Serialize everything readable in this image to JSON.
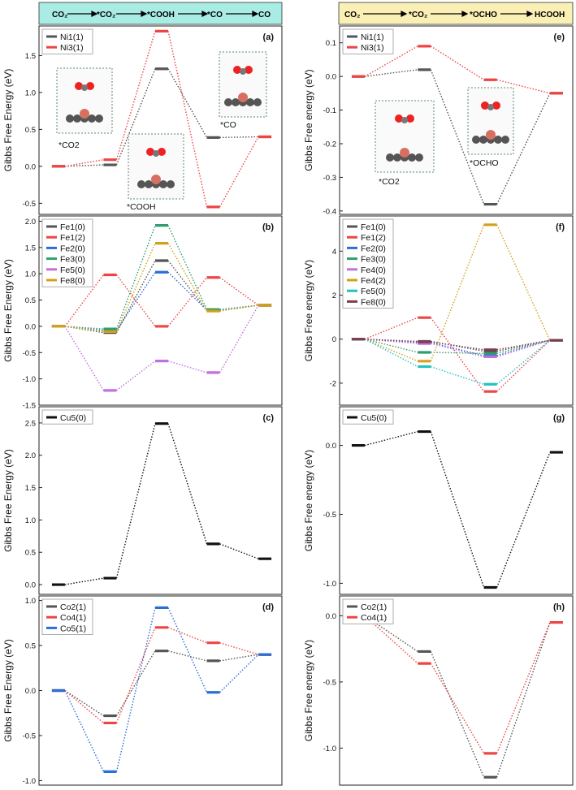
{
  "figure": {
    "header_left": {
      "steps": [
        "CO₂",
        "*CO₂",
        "*COOH",
        "*CO",
        "CO"
      ],
      "bg": "#a8ece4"
    },
    "header_right": {
      "steps": [
        "CO₂",
        "*CO₂",
        "*OCHO",
        "HCOOH"
      ],
      "bg": "#faefb4"
    }
  },
  "colors": {
    "Ni1(1)": "#555555",
    "Ni3(1)": "#ee4444",
    "Fe1(0)": "#555555",
    "Fe1(2)": "#ee4444",
    "Fe2(0)": "#2a6fd6",
    "Fe3(0)": "#2e9e6e",
    "Fe4(0)": "#c070e0",
    "Fe4(2)": "#d4a017",
    "Fe5(0)": "#c070e0",
    "Fe8(0)": "#d4a017",
    "Fe5(0)r": "#22c2c0",
    "Fe8(0)r": "#7a3e50",
    "Cu5(0)": "#111111",
    "Co2(1)": "#555555",
    "Co4(1)": "#ee4444",
    "Co5(1)": "#2a6fd6"
  },
  "chart_data": [
    {
      "id": "a",
      "type": "line",
      "panel_label": "(a)",
      "ylabel": "Gibbs Free Energy (eV)",
      "ylim": [
        -0.65,
        1.9
      ],
      "yticks": [
        -0.5,
        0.0,
        0.5,
        1.0,
        1.5
      ],
      "tick_labels": [
        "-0.5",
        "0.0",
        "0.5",
        "1.0",
        "1.5"
      ],
      "categories": [
        "CO2",
        "*CO2",
        "*COOH",
        "*CO",
        "CO"
      ],
      "series": [
        {
          "name": "Ni1(1)",
          "color": "#555555",
          "values": [
            0.0,
            0.02,
            1.32,
            0.39,
            0.4
          ]
        },
        {
          "name": "Ni3(1)",
          "color": "#ee4444",
          "values": [
            0.0,
            0.09,
            1.83,
            -0.55,
            0.4
          ]
        }
      ],
      "annotations": [
        "*CO2",
        "*COOH",
        "*CO"
      ]
    },
    {
      "id": "b",
      "type": "line",
      "panel_label": "(b)",
      "ylabel": "Gibbs Free Energy (eV)",
      "ylim": [
        -1.5,
        2.1
      ],
      "yticks": [
        -1.5,
        -1.0,
        -0.5,
        0.0,
        0.5,
        1.0,
        1.5,
        2.0
      ],
      "tick_labels": [
        "-1.5",
        "-1.0",
        "-0.5",
        "0.0",
        "0.5",
        "1.0",
        "1.5",
        "2.0"
      ],
      "categories": [
        "CO2",
        "*CO2",
        "*COOH",
        "*CO",
        "CO"
      ],
      "series": [
        {
          "name": "Fe1(0)",
          "color": "#555555",
          "values": [
            0.0,
            -0.12,
            1.25,
            0.3,
            0.4
          ]
        },
        {
          "name": "Fe1(2)",
          "color": "#ee4444",
          "values": [
            0.0,
            0.98,
            0.0,
            0.93,
            0.4
          ]
        },
        {
          "name": "Fe2(0)",
          "color": "#2a6fd6",
          "values": [
            0.0,
            -0.08,
            1.03,
            0.31,
            0.4
          ]
        },
        {
          "name": "Fe3(0)",
          "color": "#2e9e6e",
          "values": [
            0.0,
            -0.05,
            1.92,
            0.32,
            0.4
          ]
        },
        {
          "name": "Fe5(0)",
          "color": "#c070e0",
          "values": [
            0.0,
            -1.22,
            -0.66,
            -0.88,
            0.4
          ]
        },
        {
          "name": "Fe8(0)",
          "color": "#d4a017",
          "values": [
            0.0,
            -0.1,
            1.58,
            0.29,
            0.4
          ]
        }
      ]
    },
    {
      "id": "c",
      "type": "line",
      "panel_label": "(c)",
      "ylabel": "Gibbs Free Energy (eV)",
      "ylim": [
        -0.15,
        2.75
      ],
      "yticks": [
        0.0,
        0.5,
        1.0,
        1.5,
        2.0,
        2.5
      ],
      "tick_labels": [
        "0.0",
        "0.5",
        "1.0",
        "1.5",
        "2.0",
        "2.5"
      ],
      "categories": [
        "CO2",
        "*CO2",
        "*COOH",
        "*CO",
        "CO"
      ],
      "series": [
        {
          "name": "Cu5(0)",
          "color": "#111111",
          "values": [
            0.0,
            0.1,
            2.49,
            0.63,
            0.4
          ]
        }
      ]
    },
    {
      "id": "d",
      "type": "line",
      "panel_label": "(d)",
      "ylabel": "Gibbs Free Energy (eV)",
      "ylim": [
        -1.05,
        1.05
      ],
      "yticks": [
        -1.0,
        -0.5,
        0.0,
        0.5,
        1.0
      ],
      "tick_labels": [
        "-1.0",
        "-0.5",
        "0.0",
        "0.5",
        "1.0"
      ],
      "categories": [
        "CO2",
        "*CO2",
        "*COOH",
        "*CO",
        "CO"
      ],
      "series": [
        {
          "name": "Co2(1)",
          "color": "#555555",
          "values": [
            0.0,
            -0.28,
            0.44,
            0.33,
            0.4
          ]
        },
        {
          "name": "Co4(1)",
          "color": "#ee4444",
          "values": [
            0.0,
            -0.36,
            0.7,
            0.53,
            0.4
          ]
        },
        {
          "name": "Co5(1)",
          "color": "#2a6fd6",
          "values": [
            0.0,
            -0.9,
            0.92,
            -0.02,
            0.4
          ]
        }
      ]
    },
    {
      "id": "e",
      "type": "line",
      "panel_label": "(e)",
      "ylabel": "Gibbs Free energy (eV)",
      "ylim": [
        -0.41,
        0.15
      ],
      "yticks": [
        -0.4,
        -0.3,
        -0.2,
        -0.1,
        0.0,
        0.1
      ],
      "tick_labels": [
        "-0.4",
        "-0.3",
        "-0.2",
        "-0.1",
        "0.0",
        "0.1"
      ],
      "categories": [
        "CO2",
        "*CO2",
        "*OCHO",
        "HCOOH"
      ],
      "series": [
        {
          "name": "Ni1(1)",
          "color": "#555555",
          "values": [
            0.0,
            0.02,
            -0.38,
            -0.05
          ]
        },
        {
          "name": "Ni3(1)",
          "color": "#ee4444",
          "values": [
            0.0,
            0.09,
            -0.01,
            -0.05
          ]
        }
      ],
      "annotations": [
        "*CO2",
        "*OCHO"
      ]
    },
    {
      "id": "f",
      "type": "line",
      "panel_label": "(f)",
      "ylabel": "Gibbs Free energy (eV)",
      "ylim": [
        -3.0,
        5.6
      ],
      "yticks": [
        -2,
        0,
        2,
        4
      ],
      "tick_labels": [
        "-2",
        "0",
        "2",
        "4"
      ],
      "categories": [
        "CO2",
        "*CO2",
        "*OCHO",
        "HCOOH"
      ],
      "series": [
        {
          "name": "Fe1(0)",
          "color": "#555555",
          "values": [
            0.0,
            -0.1,
            -0.55,
            -0.05
          ]
        },
        {
          "name": "Fe1(2)",
          "color": "#ee4444",
          "values": [
            0.0,
            0.98,
            -2.38,
            -0.05
          ]
        },
        {
          "name": "Fe2(0)",
          "color": "#2a6fd6",
          "values": [
            0.0,
            -0.15,
            -0.75,
            -0.05
          ]
        },
        {
          "name": "Fe3(0)",
          "color": "#2e9e6e",
          "values": [
            0.0,
            -0.6,
            -0.65,
            -0.05
          ]
        },
        {
          "name": "Fe4(0)",
          "color": "#c070e0",
          "values": [
            0.0,
            -0.2,
            -0.8,
            -0.05
          ]
        },
        {
          "name": "Fe4(2)",
          "color": "#d4a017",
          "values": [
            0.0,
            -1.0,
            5.2,
            -0.05
          ]
        },
        {
          "name": "Fe5(0)",
          "color": "#22c2c0",
          "values": [
            0.0,
            -1.25,
            -2.05,
            -0.05
          ]
        },
        {
          "name": "Fe8(0)",
          "color": "#7a3e50",
          "values": [
            0.0,
            -0.12,
            -0.48,
            -0.05
          ]
        }
      ]
    },
    {
      "id": "g",
      "type": "line",
      "panel_label": "(g)",
      "ylabel": "Gibbs Free energy (eV)",
      "ylim": [
        -1.08,
        0.28
      ],
      "yticks": [
        -1.0,
        -0.5,
        0.0
      ],
      "tick_labels": [
        "-1.0",
        "-0.5",
        "0.0"
      ],
      "categories": [
        "CO2",
        "*CO2",
        "*OCHO",
        "HCOOH"
      ],
      "series": [
        {
          "name": "Cu5(0)",
          "color": "#111111",
          "values": [
            0.0,
            0.1,
            -1.03,
            -0.05
          ]
        }
      ]
    },
    {
      "id": "h",
      "type": "line",
      "panel_label": "(h)",
      "ylabel": "Gibbs Free energy (eV)",
      "ylim": [
        -1.28,
        0.15
      ],
      "yticks": [
        -1.0,
        -0.5,
        0.0
      ],
      "tick_labels": [
        "-1.0",
        "-0.5",
        "0.0"
      ],
      "categories": [
        "CO2",
        "*CO2",
        "*OCHO",
        "HCOOH"
      ],
      "series": [
        {
          "name": "Co2(1)",
          "color": "#555555",
          "values": [
            0.0,
            -0.27,
            -1.22,
            -0.05
          ]
        },
        {
          "name": "Co4(1)",
          "color": "#ee4444",
          "values": [
            0.0,
            -0.36,
            -1.04,
            -0.05
          ]
        }
      ]
    }
  ]
}
